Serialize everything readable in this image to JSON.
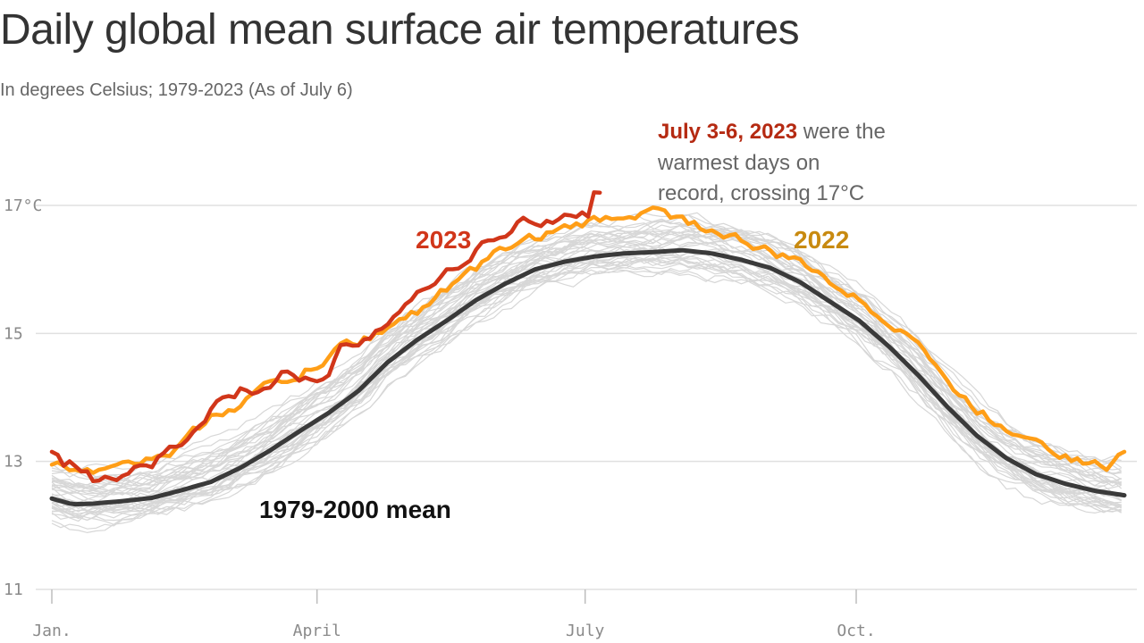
{
  "title": "Daily global mean surface air temperatures",
  "subtitle": "In degrees Celsius; 1979-2023 (As of July 6)",
  "colors": {
    "y2023": "#d1361a",
    "y2022": "#ff9e17",
    "mean": "#3a3a3a",
    "other_years": "#d7d7d7",
    "grid": "#e0e0e0",
    "annotation_highlight": "#b52a12",
    "label_2022": "#c88a10"
  },
  "chart_data": {
    "type": "line",
    "title": "Daily global mean surface air temperatures",
    "subtitle": "In degrees Celsius; 1979-2023 (As of July 6)",
    "x_unit": "day of year",
    "xlim": [
      1,
      365
    ],
    "ylim": [
      11,
      17.6
    ],
    "y_ticks": [
      {
        "value": 17,
        "label": "17°C"
      },
      {
        "value": 15,
        "label": "15"
      },
      {
        "value": 13,
        "label": "13"
      },
      {
        "value": 11,
        "label": "11"
      }
    ],
    "x_ticks": [
      {
        "value": 1,
        "label": "Jan."
      },
      {
        "value": 91,
        "label": "April"
      },
      {
        "value": 182,
        "label": "July"
      },
      {
        "value": 274,
        "label": "Oct."
      }
    ],
    "grid": true,
    "series": [
      {
        "name": "1979-2000 mean",
        "x": [
          1,
          8,
          15,
          25,
          35,
          45,
          55,
          65,
          75,
          85,
          95,
          105,
          115,
          125,
          135,
          145,
          155,
          165,
          175,
          185,
          195,
          205,
          215,
          225,
          235,
          245,
          255,
          265,
          275,
          285,
          295,
          305,
          315,
          325,
          335,
          345,
          355,
          365
        ],
        "y": [
          12.42,
          12.33,
          12.34,
          12.38,
          12.43,
          12.55,
          12.68,
          12.9,
          13.17,
          13.47,
          13.76,
          14.1,
          14.55,
          14.9,
          15.2,
          15.52,
          15.78,
          16.0,
          16.12,
          16.2,
          16.25,
          16.27,
          16.3,
          16.25,
          16.15,
          16.02,
          15.8,
          15.5,
          15.2,
          14.8,
          14.35,
          13.85,
          13.4,
          13.05,
          12.8,
          12.65,
          12.54,
          12.47
        ]
      },
      {
        "name": "2022",
        "x": [
          1,
          8,
          15,
          25,
          35,
          45,
          55,
          65,
          75,
          85,
          95,
          100,
          105,
          115,
          125,
          135,
          145,
          155,
          165,
          175,
          185,
          195,
          205,
          215,
          225,
          235,
          245,
          255,
          265,
          275,
          285,
          295,
          305,
          315,
          325,
          335,
          345,
          355,
          360,
          365
        ],
        "y": [
          12.95,
          12.9,
          12.88,
          13.05,
          13.0,
          13.25,
          13.7,
          13.9,
          14.2,
          14.35,
          14.6,
          14.85,
          14.85,
          15.1,
          15.35,
          15.7,
          16.0,
          16.35,
          16.5,
          16.62,
          16.75,
          16.85,
          16.9,
          16.8,
          16.6,
          16.45,
          16.25,
          16.1,
          15.85,
          15.5,
          15.2,
          14.9,
          14.2,
          13.8,
          13.5,
          13.4,
          13.1,
          12.95,
          12.9,
          13.15
        ]
      },
      {
        "name": "2023",
        "x": [
          1,
          5,
          10,
          15,
          20,
          25,
          30,
          35,
          40,
          45,
          50,
          55,
          60,
          65,
          70,
          75,
          80,
          85,
          90,
          95,
          100,
          105,
          110,
          115,
          120,
          125,
          130,
          135,
          140,
          145,
          150,
          155,
          160,
          165,
          170,
          175,
          180,
          183,
          185,
          187
        ],
        "y": [
          13.15,
          12.97,
          12.92,
          12.72,
          12.85,
          12.8,
          12.95,
          13.0,
          13.15,
          13.25,
          13.5,
          13.8,
          14.0,
          14.1,
          13.95,
          14.2,
          14.4,
          14.3,
          14.35,
          14.3,
          14.8,
          14.9,
          15.05,
          15.25,
          15.4,
          15.55,
          15.8,
          16.0,
          16.05,
          16.35,
          16.45,
          16.55,
          16.8,
          16.65,
          16.7,
          16.85,
          16.8,
          16.85,
          17.15,
          17.2
        ]
      }
    ],
    "labels": [
      {
        "text": "2023",
        "series": "2023"
      },
      {
        "text": "2022",
        "series": "2022"
      },
      {
        "text": "1979-2000 mean",
        "series": "1979-2000 mean"
      }
    ],
    "annotation": {
      "highlight": "July 3-6, 2023",
      "text_line1": " were the",
      "text_line2": "warmest days on",
      "text_line3": "record, crossing 17°C"
    }
  }
}
